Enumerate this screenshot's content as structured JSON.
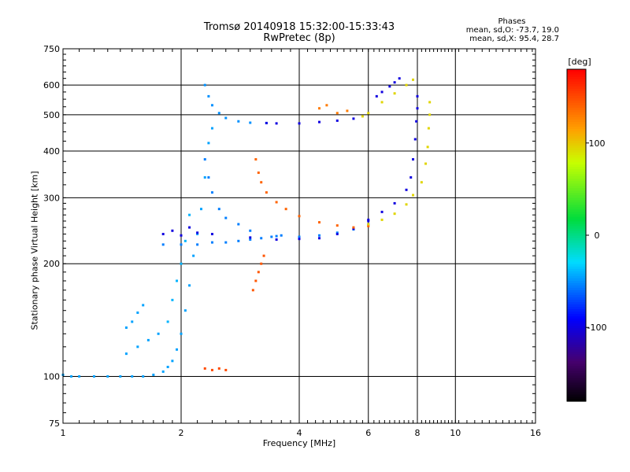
{
  "chart_data": {
    "type": "scatter",
    "title": "Tromsø 20140918 15:32:00-15:33:43",
    "subtitle": "RwPretec (8p)",
    "xlabel": "Frequency [MHz]",
    "ylabel": "Stationary phase Virtual Height [km]",
    "x_scale": "log",
    "y_scale": "log",
    "xlim": [
      1,
      16
    ],
    "ylim": [
      75,
      750
    ],
    "x_ticks": [
      1,
      2,
      4,
      6,
      8,
      10,
      16
    ],
    "y_ticks": [
      75,
      100,
      200,
      300,
      400,
      500,
      600,
      750
    ],
    "grid": true,
    "colorbar": {
      "label": "[deg]",
      "range": [
        -180,
        180
      ],
      "ticks": [
        100,
        0,
        -100
      ]
    },
    "stats": {
      "title": "Phases",
      "line1": "mean, sd,O: -73.7, 19.0",
      "line2": "mean, sd,X:  95.4, 28.7"
    },
    "series": [
      {
        "color_value": -45,
        "points": [
          [
            1.0,
            101
          ],
          [
            1.05,
            100
          ],
          [
            1.1,
            100
          ],
          [
            1.2,
            100
          ],
          [
            1.3,
            100
          ],
          [
            1.4,
            100
          ],
          [
            1.5,
            100
          ],
          [
            1.6,
            100
          ],
          [
            1.7,
            101
          ],
          [
            1.8,
            103
          ],
          [
            1.85,
            106
          ],
          [
            1.9,
            110
          ],
          [
            1.95,
            118
          ],
          [
            2.0,
            130
          ],
          [
            2.05,
            150
          ],
          [
            2.1,
            175
          ],
          [
            2.15,
            210
          ],
          [
            2.2,
            240
          ],
          [
            2.25,
            280
          ],
          [
            2.3,
            340
          ],
          [
            2.35,
            420
          ],
          [
            2.4,
            460
          ]
        ]
      },
      {
        "color_value": -45,
        "points": [
          [
            1.45,
            135
          ],
          [
            1.5,
            140
          ],
          [
            1.55,
            148
          ],
          [
            1.6,
            155
          ],
          [
            1.45,
            115
          ],
          [
            1.55,
            120
          ],
          [
            1.65,
            125
          ],
          [
            1.75,
            130
          ]
        ]
      },
      {
        "color_value": -40,
        "points": [
          [
            1.85,
            140
          ],
          [
            1.9,
            160
          ],
          [
            1.95,
            180
          ],
          [
            2.0,
            200
          ],
          [
            2.05,
            230
          ],
          [
            2.1,
            270
          ]
        ]
      },
      {
        "color_value": -55,
        "points": [
          [
            1.8,
            225
          ],
          [
            2.0,
            225
          ],
          [
            2.2,
            225
          ],
          [
            2.4,
            228
          ],
          [
            2.6,
            228
          ],
          [
            2.8,
            230
          ],
          [
            3.0,
            232
          ],
          [
            3.2,
            234
          ],
          [
            3.4,
            236
          ],
          [
            3.6,
            238
          ]
        ]
      },
      {
        "color_value": -50,
        "points": [
          [
            2.3,
            600
          ],
          [
            2.35,
            560
          ],
          [
            2.4,
            530
          ],
          [
            2.5,
            505
          ],
          [
            2.6,
            490
          ],
          [
            2.8,
            480
          ],
          [
            3.0,
            476
          ],
          [
            3.3,
            475
          ]
        ]
      },
      {
        "color_value": -55,
        "points": [
          [
            2.3,
            380
          ],
          [
            2.35,
            340
          ],
          [
            2.4,
            310
          ],
          [
            2.5,
            280
          ],
          [
            2.6,
            265
          ],
          [
            2.8,
            255
          ],
          [
            3.0,
            245
          ],
          [
            3.5,
            237
          ],
          [
            4.0,
            236
          ],
          [
            4.5,
            238
          ],
          [
            5.0,
            242
          ],
          [
            5.5,
            247
          ],
          [
            6.0,
            255
          ]
        ]
      },
      {
        "color_value": -100,
        "points": [
          [
            3.3,
            475
          ],
          [
            3.5,
            474
          ],
          [
            4.0,
            474
          ],
          [
            4.5,
            478
          ],
          [
            5.0,
            482
          ],
          [
            5.5,
            488
          ]
        ]
      },
      {
        "color_value": -100,
        "points": [
          [
            1.8,
            240
          ],
          [
            1.9,
            245
          ],
          [
            2.0,
            238
          ],
          [
            2.1,
            250
          ],
          [
            2.2,
            242
          ],
          [
            2.4,
            240
          ],
          [
            3.0,
            235
          ],
          [
            3.5,
            232
          ],
          [
            4.0,
            233
          ],
          [
            4.5,
            234
          ],
          [
            5.0,
            240
          ],
          [
            5.5,
            248
          ],
          [
            6.0,
            260
          ]
        ]
      },
      {
        "color_value": -100,
        "points": [
          [
            6.0,
            262
          ],
          [
            6.5,
            275
          ],
          [
            7.0,
            290
          ],
          [
            7.5,
            315
          ],
          [
            7.7,
            340
          ],
          [
            7.8,
            380
          ],
          [
            7.9,
            430
          ],
          [
            7.95,
            480
          ],
          [
            8.0,
            520
          ],
          [
            8.0,
            560
          ]
        ]
      },
      {
        "color_value": -100,
        "points": [
          [
            6.3,
            560
          ],
          [
            6.5,
            575
          ],
          [
            6.8,
            595
          ],
          [
            7.0,
            610
          ],
          [
            7.2,
            625
          ]
        ]
      },
      {
        "color_value": 140,
        "points": [
          [
            3.1,
            380
          ],
          [
            3.15,
            350
          ],
          [
            3.2,
            330
          ],
          [
            3.3,
            310
          ],
          [
            3.5,
            292
          ],
          [
            3.7,
            280
          ],
          [
            4.0,
            268
          ],
          [
            4.5,
            258
          ],
          [
            5.0,
            253
          ],
          [
            5.5,
            250
          ],
          [
            6.0,
            252
          ]
        ]
      },
      {
        "color_value": 145,
        "points": [
          [
            3.05,
            170
          ],
          [
            3.1,
            180
          ],
          [
            3.15,
            190
          ],
          [
            3.2,
            200
          ],
          [
            3.25,
            210
          ]
        ]
      },
      {
        "color_value": 150,
        "points": [
          [
            2.3,
            105
          ],
          [
            2.4,
            104
          ],
          [
            2.5,
            105
          ],
          [
            2.6,
            104
          ]
        ]
      },
      {
        "color_value": 95,
        "points": [
          [
            6.0,
            255
          ],
          [
            6.5,
            262
          ],
          [
            7.0,
            272
          ],
          [
            7.5,
            288
          ],
          [
            7.8,
            305
          ],
          [
            8.2,
            330
          ],
          [
            8.4,
            370
          ],
          [
            8.5,
            410
          ],
          [
            8.55,
            460
          ],
          [
            8.6,
            500
          ],
          [
            8.6,
            540
          ]
        ]
      },
      {
        "color_value": 95,
        "points": [
          [
            5.8,
            495
          ],
          [
            6.0,
            505
          ],
          [
            6.5,
            540
          ],
          [
            7.0,
            570
          ],
          [
            7.5,
            600
          ],
          [
            7.8,
            620
          ]
        ]
      },
      {
        "color_value": 130,
        "points": [
          [
            4.5,
            520
          ],
          [
            4.7,
            530
          ],
          [
            5.0,
            505
          ],
          [
            5.3,
            512
          ]
        ]
      }
    ]
  }
}
